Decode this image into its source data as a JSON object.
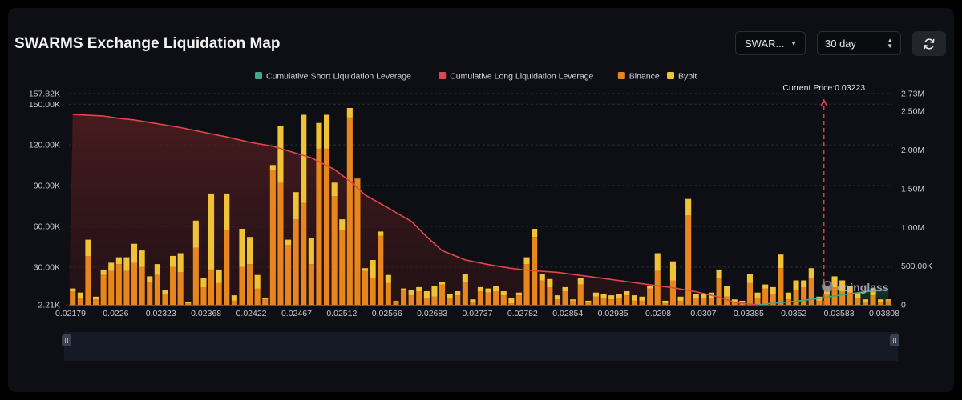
{
  "header": {
    "title": "SWARMS Exchange Liquidation Map",
    "symbol_select": "SWAR...",
    "period_select": "30 day",
    "refresh_icon": "refresh-icon"
  },
  "watermark": "coinglass",
  "colors": {
    "short": "#3fa88c",
    "long": "#e0474a",
    "binance": "#e8861e",
    "bybit": "#f0c336"
  },
  "chart_data": {
    "type": "bar",
    "title": "SWARMS Exchange Liquidation Map",
    "legend": [
      "Cumulative Short Liquidation Leverage",
      "Cumulative Long Liquidation Leverage",
      "Binance",
      "Bybit"
    ],
    "legend_position": "top",
    "annotation": "Current Price:0.03223",
    "current_price_position": 91.7,
    "x_tick_labels": [
      "0.02179",
      "0.0226",
      "0.02323",
      "0.02368",
      "0.02422",
      "0.02467",
      "0.02512",
      "0.02566",
      "0.02683",
      "0.02737",
      "0.02782",
      "0.02854",
      "0.02935",
      "0.0298",
      "0.0307",
      "0.03385",
      "0.0352",
      "0.03583",
      "0.03808"
    ],
    "y_left_ticks": [
      "157.82K",
      "150.00K",
      "120.00K",
      "90.00K",
      "60.00K",
      "30.00K",
      "2.21K"
    ],
    "y_left_tick_values": [
      157820,
      150000,
      120000,
      90000,
      60000,
      30000,
      2210
    ],
    "y_right_ticks": [
      "2.73M",
      "2.50M",
      "2.00M",
      "1.50M",
      "1.00M",
      "500.00K",
      "0"
    ],
    "y_right_tick_values": [
      2730000,
      2500000,
      2000000,
      1500000,
      1000000,
      500000,
      0
    ],
    "ylim_left": [
      2210,
      157820
    ],
    "ylim_right": [
      0,
      2730000
    ],
    "grid": true,
    "series": [
      {
        "name": "Binance",
        "values": [
          10,
          5,
          36,
          4,
          22,
          25,
          30,
          25,
          31,
          28,
          17,
          22,
          8,
          28,
          24,
          1,
          42,
          13,
          26,
          16,
          55,
          3,
          28,
          30,
          12,
          4,
          99,
          90,
          44,
          63,
          75,
          30,
          115,
          115,
          80,
          55,
          138,
          93,
          25,
          20,
          51,
          16,
          3,
          11,
          7,
          10,
          5,
          6,
          15,
          5,
          7,
          17,
          2,
          10,
          9,
          10,
          7,
          1,
          7,
          30,
          50,
          18,
          13,
          4,
          10,
          3,
          15,
          2,
          6,
          5,
          4,
          5,
          7,
          3,
          3,
          12,
          25,
          1,
          18,
          3,
          66,
          5,
          5,
          5,
          20,
          6,
          2,
          2,
          16,
          5,
          12,
          8,
          27,
          4,
          11,
          13,
          20,
          3,
          8,
          13,
          10,
          9,
          5,
          2,
          7,
          2,
          3
        ]
      },
      {
        "name": "Bybit",
        "values": [
          2,
          4,
          12,
          2,
          4,
          6,
          5,
          10,
          14,
          12,
          4,
          8,
          3,
          8,
          14,
          1,
          20,
          7,
          56,
          10,
          27,
          4,
          28,
          20,
          10,
          1,
          4,
          42,
          4,
          20,
          65,
          19,
          19,
          25,
          10,
          8,
          7,
          0,
          2,
          13,
          3,
          6,
          0,
          1,
          4,
          3,
          5,
          8,
          2,
          3,
          3,
          6,
          2,
          3,
          3,
          4,
          3,
          4,
          2,
          5,
          6,
          5,
          6,
          3,
          3,
          1,
          5,
          1,
          3,
          3,
          3,
          3,
          3,
          4,
          3,
          2,
          13,
          2,
          14,
          3,
          12,
          3,
          3,
          4,
          6,
          8,
          2,
          1,
          7,
          4,
          3,
          5,
          10,
          5,
          7,
          5,
          7,
          3,
          7,
          8,
          8,
          5,
          4,
          2,
          5,
          2,
          1
        ]
      },
      {
        "name": "Cumulative Long Liquidation Leverage",
        "points": [
          [
            0,
            2460000
          ],
          [
            2,
            2450000
          ],
          [
            4,
            2440000
          ],
          [
            6,
            2410000
          ],
          [
            8,
            2390000
          ],
          [
            11,
            2340000
          ],
          [
            14,
            2290000
          ],
          [
            17,
            2230000
          ],
          [
            20,
            2170000
          ],
          [
            23,
            2100000
          ],
          [
            26,
            2050000
          ],
          [
            28,
            1990000
          ],
          [
            31,
            1900000
          ],
          [
            34,
            1750000
          ],
          [
            36,
            1600000
          ],
          [
            38,
            1420000
          ],
          [
            41,
            1250000
          ],
          [
            44,
            1080000
          ],
          [
            46,
            880000
          ],
          [
            48,
            700000
          ],
          [
            51,
            580000
          ],
          [
            54,
            520000
          ],
          [
            57,
            470000
          ],
          [
            60,
            440000
          ],
          [
            63,
            420000
          ],
          [
            66,
            380000
          ],
          [
            69,
            340000
          ],
          [
            72,
            300000
          ],
          [
            75,
            260000
          ],
          [
            78,
            220000
          ],
          [
            81,
            170000
          ],
          [
            84,
            100000
          ],
          [
            86,
            30000
          ],
          [
            89,
            0
          ]
        ]
      },
      {
        "name": "Cumulative Short Liquidation Leverage",
        "points": [
          [
            89,
            0
          ],
          [
            91,
            20000
          ],
          [
            94,
            45000
          ],
          [
            97,
            85000
          ],
          [
            100,
            130000
          ],
          [
            103,
            170000
          ],
          [
            106,
            198000
          ]
        ]
      }
    ]
  }
}
